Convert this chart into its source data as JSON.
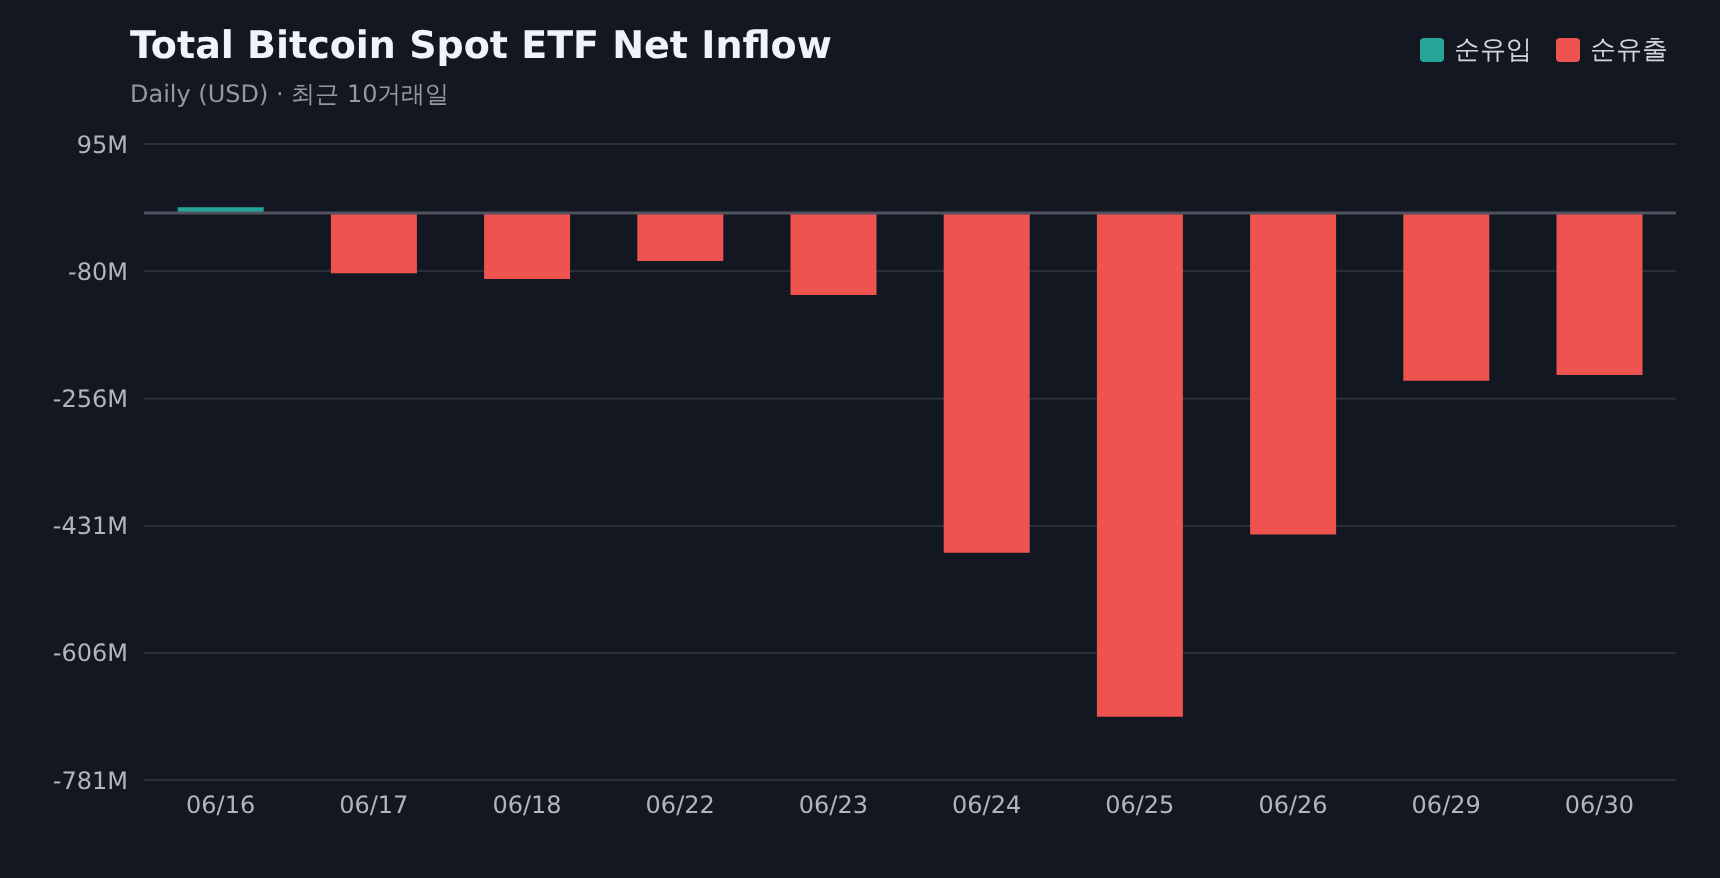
{
  "chart_data": {
    "type": "bar",
    "title": "Total Bitcoin Spot ETF Net Inflow",
    "subtitle": "Daily (USD) · 최근 10거래일",
    "categories": [
      "06/16",
      "06/17",
      "06/18",
      "06/22",
      "06/23",
      "06/24",
      "06/25",
      "06/26",
      "06/29",
      "06/30"
    ],
    "series": [
      {
        "name": "순유입",
        "color": "#26a69a",
        "values": [
          8,
          null,
          null,
          null,
          null,
          null,
          null,
          null,
          null,
          null
        ]
      },
      {
        "name": "순유출",
        "color": "#ef5350",
        "values": [
          null,
          -83,
          -91,
          -66,
          -113,
          -468,
          -694,
          -443,
          -231,
          -223
        ]
      }
    ],
    "stacked": true,
    "ylim": [
      -781,
      95
    ],
    "yticks": [
      {
        "value": 95,
        "label": "95M"
      },
      {
        "value": -80,
        "label": "-80M"
      },
      {
        "value": -256,
        "label": "-256M"
      },
      {
        "value": -431,
        "label": "-431M"
      },
      {
        "value": -606,
        "label": "-606M"
      },
      {
        "value": -781,
        "label": "-781M"
      }
    ],
    "ref_lines": [
      {
        "axis": "y",
        "value": 0,
        "color": "#50535e"
      }
    ],
    "grid": "y",
    "legend": "top right"
  }
}
